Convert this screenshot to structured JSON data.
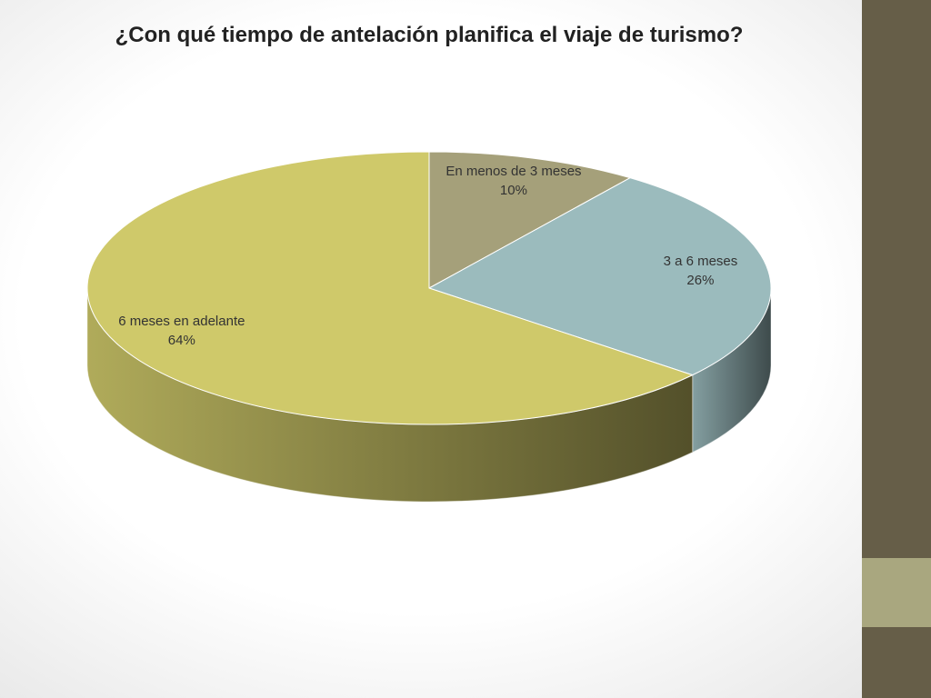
{
  "chart_data": {
    "type": "pie3d",
    "title": "¿Con qué tiempo de antelación planifica el viaje de turismo?",
    "categories": [
      "En menos de 3 meses",
      "3 a 6 meses",
      "6 meses en adelante"
    ],
    "values": [
      10,
      26,
      64
    ],
    "value_labels": [
      "10%",
      "26%",
      "64%"
    ],
    "colors": [
      "#a5a07a",
      "#9bbbbd",
      "#cfc96a"
    ]
  }
}
